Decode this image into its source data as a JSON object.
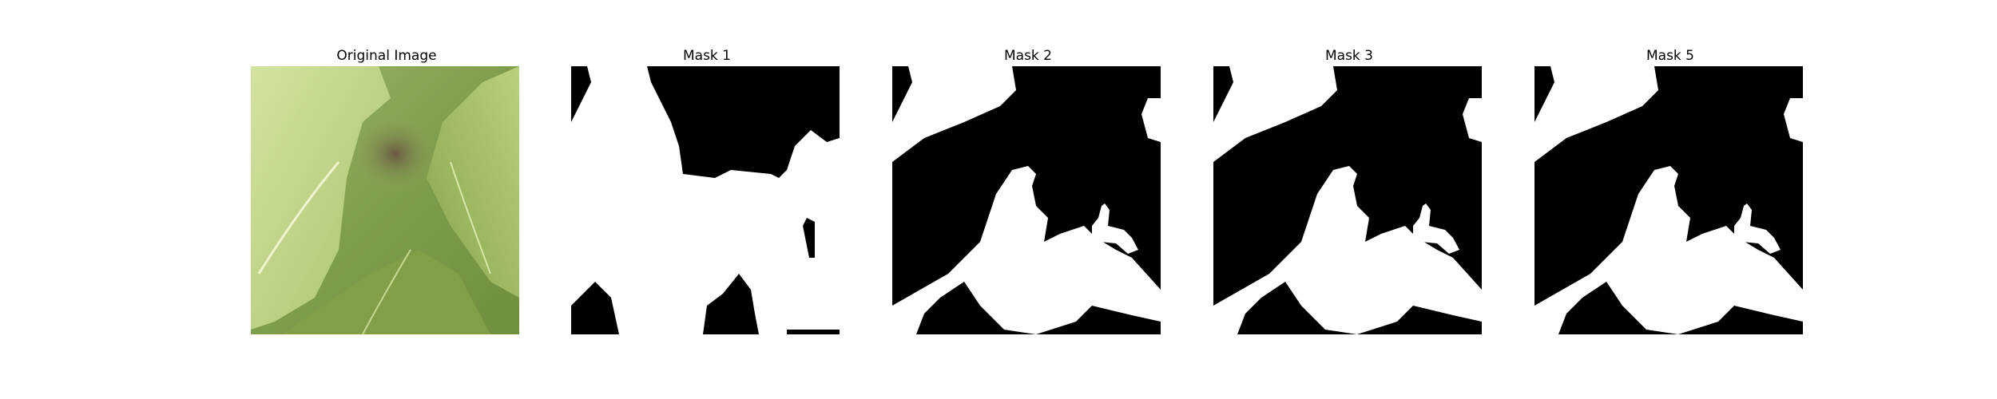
{
  "panels": [
    {
      "title": "Original Image",
      "kind": "photo"
    },
    {
      "title": "Mask 1",
      "kind": "mask"
    },
    {
      "title": "Mask 2",
      "kind": "mask"
    },
    {
      "title": "Mask 3",
      "kind": "mask"
    },
    {
      "title": "Mask 5",
      "kind": "mask"
    }
  ]
}
